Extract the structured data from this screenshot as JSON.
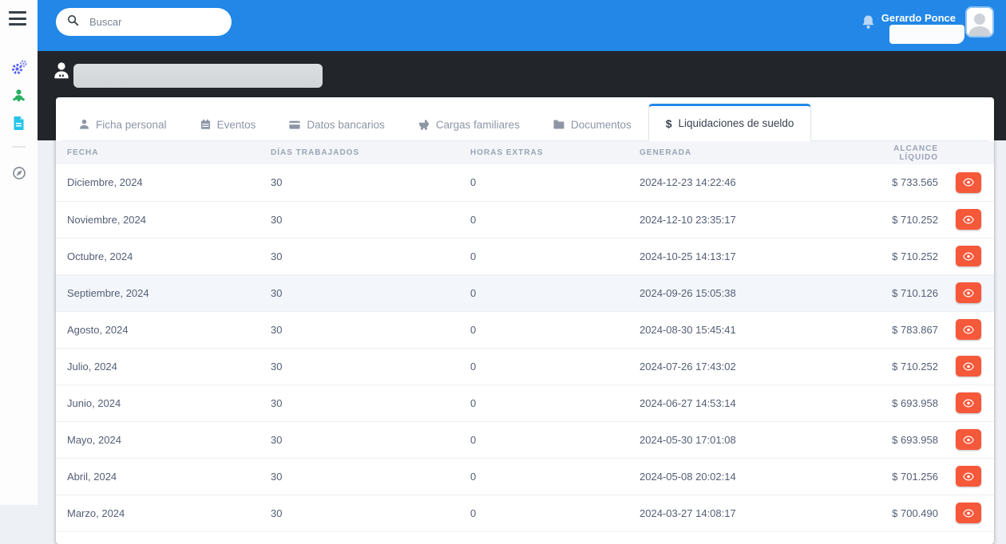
{
  "colors": {
    "primary_blue": "#2287e7",
    "dark_band": "#22262b",
    "danger_red": "#f6583a",
    "page_background": "#edf0f5",
    "highlight_row": "#f3f6fa"
  },
  "navbar": {
    "search_placeholder": "Buscar",
    "user_name": "Gerardo Ponce",
    "icons": [
      "search-icon",
      "bell-icon",
      "avatar"
    ]
  },
  "sidebar": {
    "icons": [
      "menu-icon",
      "gears-icon",
      "team-icon",
      "document-icon",
      "compass-icon"
    ]
  },
  "profile_header": {
    "icon": "user-icon"
  },
  "tabs": [
    {
      "label": "Ficha personal",
      "icon": "user-icon",
      "active": false
    },
    {
      "label": "Eventos",
      "icon": "calendar-icon",
      "active": false
    },
    {
      "label": "Datos bancarios",
      "icon": "credit-card-icon",
      "active": false
    },
    {
      "label": "Cargas familiares",
      "icon": "stroller-icon",
      "active": false
    },
    {
      "label": "Documentos",
      "icon": "folder-icon",
      "active": false
    },
    {
      "label": "Liquidaciones de sueldo",
      "icon": "dollar-icon",
      "active": true
    }
  ],
  "table": {
    "headers": [
      "FECHA",
      "DÍAS TRABAJADOS",
      "HORAS EXTRAS",
      "GENERADA",
      "ALCANCE LÍQUIDO"
    ],
    "action_icon": "eye-icon",
    "rows": [
      {
        "fecha": "Diciembre, 2024",
        "dias_trabajados": "30",
        "horas_extras": "0",
        "generada": "2024-12-23 14:22:46",
        "alcance_liquido": "$ 733.565",
        "highlight": false
      },
      {
        "fecha": "Noviembre, 2024",
        "dias_trabajados": "30",
        "horas_extras": "0",
        "generada": "2024-12-10 23:35:17",
        "alcance_liquido": "$ 710.252",
        "highlight": false
      },
      {
        "fecha": "Octubre, 2024",
        "dias_trabajados": "30",
        "horas_extras": "0",
        "generada": "2024-10-25 14:13:17",
        "alcance_liquido": "$ 710.252",
        "highlight": false
      },
      {
        "fecha": "Septiembre, 2024",
        "dias_trabajados": "30",
        "horas_extras": "0",
        "generada": "2024-09-26 15:05:38",
        "alcance_liquido": "$ 710.126",
        "highlight": true
      },
      {
        "fecha": "Agosto, 2024",
        "dias_trabajados": "30",
        "horas_extras": "0",
        "generada": "2024-08-30 15:45:41",
        "alcance_liquido": "$ 783.867",
        "highlight": false
      },
      {
        "fecha": "Julio, 2024",
        "dias_trabajados": "30",
        "horas_extras": "0",
        "generada": "2024-07-26 17:43:02",
        "alcance_liquido": "$ 710.252",
        "highlight": false
      },
      {
        "fecha": "Junio, 2024",
        "dias_trabajados": "30",
        "horas_extras": "0",
        "generada": "2024-06-27 14:53:14",
        "alcance_liquido": "$ 693.958",
        "highlight": false
      },
      {
        "fecha": "Mayo, 2024",
        "dias_trabajados": "30",
        "horas_extras": "0",
        "generada": "2024-05-30 17:01:08",
        "alcance_liquido": "$ 693.958",
        "highlight": false
      },
      {
        "fecha": "Abril, 2024",
        "dias_trabajados": "30",
        "horas_extras": "0",
        "generada": "2024-05-08 20:02:14",
        "alcance_liquido": "$ 701.256",
        "highlight": false
      },
      {
        "fecha": "Marzo, 2024",
        "dias_trabajados": "30",
        "horas_extras": "0",
        "generada": "2024-03-27 14:08:17",
        "alcance_liquido": "$ 700.490",
        "highlight": false
      }
    ]
  }
}
